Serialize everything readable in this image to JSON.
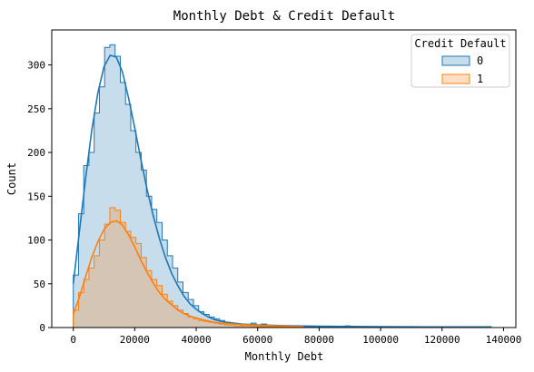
{
  "chart_data": {
    "type": "histogram",
    "title": "Monthly Debt & Credit Default",
    "xlabel": "Monthly Debt",
    "ylabel": "Count",
    "xlim": [
      -7000,
      144000
    ],
    "ylim": [
      0,
      340
    ],
    "xticks": [
      0,
      20000,
      40000,
      60000,
      80000,
      100000,
      120000,
      140000
    ],
    "yticks": [
      0,
      50,
      100,
      150,
      200,
      250,
      300
    ],
    "legend": {
      "title": "Credit Default",
      "placement": "top-right"
    },
    "bin_width": 1700,
    "series": [
      {
        "name": "0",
        "color": "#1f77b4",
        "bins": [
          [
            0,
            60
          ],
          [
            1700,
            130
          ],
          [
            3400,
            185
          ],
          [
            5100,
            200
          ],
          [
            6800,
            245
          ],
          [
            8500,
            275
          ],
          [
            10200,
            320
          ],
          [
            11900,
            323
          ],
          [
            13600,
            310
          ],
          [
            15300,
            280
          ],
          [
            17000,
            255
          ],
          [
            18700,
            225
          ],
          [
            20400,
            200
          ],
          [
            22100,
            180
          ],
          [
            23800,
            150
          ],
          [
            25500,
            135
          ],
          [
            27200,
            120
          ],
          [
            28900,
            100
          ],
          [
            30600,
            82
          ],
          [
            32300,
            68
          ],
          [
            34000,
            52
          ],
          [
            35700,
            40
          ],
          [
            37400,
            32
          ],
          [
            39100,
            25
          ],
          [
            40800,
            18
          ],
          [
            42500,
            15
          ],
          [
            44200,
            12
          ],
          [
            45900,
            10
          ],
          [
            47600,
            8
          ],
          [
            49300,
            6
          ],
          [
            51000,
            5
          ],
          [
            52700,
            4
          ],
          [
            54400,
            3
          ],
          [
            56100,
            3
          ],
          [
            57800,
            5
          ],
          [
            59500,
            3
          ],
          [
            61200,
            4
          ],
          [
            62900,
            2
          ],
          [
            64600,
            2
          ],
          [
            66300,
            2
          ],
          [
            68000,
            2
          ],
          [
            69700,
            2
          ],
          [
            71400,
            1
          ],
          [
            73100,
            1
          ],
          [
            74800,
            1
          ],
          [
            76500,
            1
          ],
          [
            78200,
            1
          ],
          [
            79900,
            1
          ],
          [
            81600,
            1
          ],
          [
            83300,
            1
          ],
          [
            85000,
            1
          ],
          [
            86700,
            1
          ],
          [
            88400,
            2
          ],
          [
            90100,
            1
          ],
          [
            91800,
            1
          ],
          [
            93500,
            1
          ],
          [
            95200,
            1
          ],
          [
            96900,
            1
          ],
          [
            98600,
            1
          ],
          [
            100300,
            1
          ],
          [
            102000,
            1
          ],
          [
            103700,
            1
          ],
          [
            105400,
            1
          ],
          [
            107100,
            1
          ],
          [
            108800,
            1
          ],
          [
            110500,
            1
          ],
          [
            112200,
            1
          ],
          [
            113900,
            1
          ],
          [
            115600,
            1
          ],
          [
            117300,
            1
          ],
          [
            119000,
            1
          ],
          [
            120700,
            1
          ],
          [
            122400,
            1
          ],
          [
            124100,
            1
          ],
          [
            125800,
            1
          ],
          [
            127500,
            1
          ],
          [
            129200,
            1
          ],
          [
            130900,
            1
          ],
          [
            132600,
            1
          ],
          [
            134300,
            1
          ]
        ],
        "kde": [
          [
            0,
            50
          ],
          [
            2000,
            110
          ],
          [
            4000,
            170
          ],
          [
            6000,
            225
          ],
          [
            8000,
            268
          ],
          [
            10000,
            298
          ],
          [
            12000,
            311
          ],
          [
            14000,
            309
          ],
          [
            16000,
            292
          ],
          [
            18000,
            262
          ],
          [
            20000,
            228
          ],
          [
            22000,
            192
          ],
          [
            24000,
            158
          ],
          [
            26000,
            128
          ],
          [
            28000,
            102
          ],
          [
            30000,
            80
          ],
          [
            32000,
            62
          ],
          [
            34000,
            48
          ],
          [
            36000,
            36
          ],
          [
            38000,
            27
          ],
          [
            40000,
            21
          ],
          [
            42000,
            16
          ],
          [
            44000,
            12
          ],
          [
            46000,
            9
          ],
          [
            48000,
            7
          ],
          [
            50000,
            6
          ],
          [
            55000,
            4
          ],
          [
            60000,
            3
          ],
          [
            65000,
            2.5
          ],
          [
            70000,
            2
          ],
          [
            80000,
            1.5
          ],
          [
            90000,
            1.2
          ],
          [
            100000,
            1
          ],
          [
            110000,
            0.8
          ],
          [
            120000,
            0.6
          ],
          [
            136000,
            0.4
          ]
        ]
      },
      {
        "name": "1",
        "color": "#ff7f0e",
        "bins": [
          [
            0,
            20
          ],
          [
            1700,
            40
          ],
          [
            3400,
            55
          ],
          [
            5100,
            68
          ],
          [
            6800,
            82
          ],
          [
            8500,
            100
          ],
          [
            10200,
            118
          ],
          [
            11900,
            137
          ],
          [
            13600,
            134
          ],
          [
            15300,
            120
          ],
          [
            17000,
            110
          ],
          [
            18700,
            103
          ],
          [
            20400,
            96
          ],
          [
            22100,
            80
          ],
          [
            23800,
            65
          ],
          [
            25500,
            55
          ],
          [
            27200,
            48
          ],
          [
            28900,
            38
          ],
          [
            30600,
            30
          ],
          [
            32300,
            25
          ],
          [
            34000,
            20
          ],
          [
            35700,
            16
          ],
          [
            37400,
            12
          ],
          [
            39100,
            10
          ],
          [
            40800,
            8
          ],
          [
            42500,
            7
          ],
          [
            44200,
            6
          ],
          [
            45900,
            5
          ],
          [
            47600,
            4
          ],
          [
            49300,
            3
          ],
          [
            51000,
            3
          ],
          [
            52700,
            2
          ],
          [
            54400,
            2
          ],
          [
            56100,
            2
          ],
          [
            57800,
            1
          ],
          [
            59500,
            1
          ],
          [
            61200,
            1
          ],
          [
            62900,
            1
          ],
          [
            64600,
            1
          ],
          [
            66300,
            1
          ],
          [
            68000,
            1
          ],
          [
            69700,
            1
          ],
          [
            71400,
            1
          ]
        ],
        "kde": [
          [
            0,
            15
          ],
          [
            2000,
            35
          ],
          [
            4000,
            58
          ],
          [
            6000,
            80
          ],
          [
            8000,
            98
          ],
          [
            10000,
            112
          ],
          [
            12000,
            120
          ],
          [
            14000,
            122
          ],
          [
            16000,
            117
          ],
          [
            18000,
            106
          ],
          [
            20000,
            92
          ],
          [
            22000,
            77
          ],
          [
            24000,
            63
          ],
          [
            26000,
            51
          ],
          [
            28000,
            40
          ],
          [
            30000,
            32
          ],
          [
            32000,
            26
          ],
          [
            34000,
            20
          ],
          [
            36000,
            16
          ],
          [
            38000,
            13
          ],
          [
            40000,
            11
          ],
          [
            42000,
            9
          ],
          [
            44000,
            7.5
          ],
          [
            46000,
            6
          ],
          [
            48000,
            5
          ],
          [
            50000,
            4.5
          ],
          [
            55000,
            3.5
          ],
          [
            60000,
            2.5
          ],
          [
            65000,
            2
          ],
          [
            70000,
            1.5
          ],
          [
            75000,
            1
          ]
        ]
      }
    ]
  }
}
